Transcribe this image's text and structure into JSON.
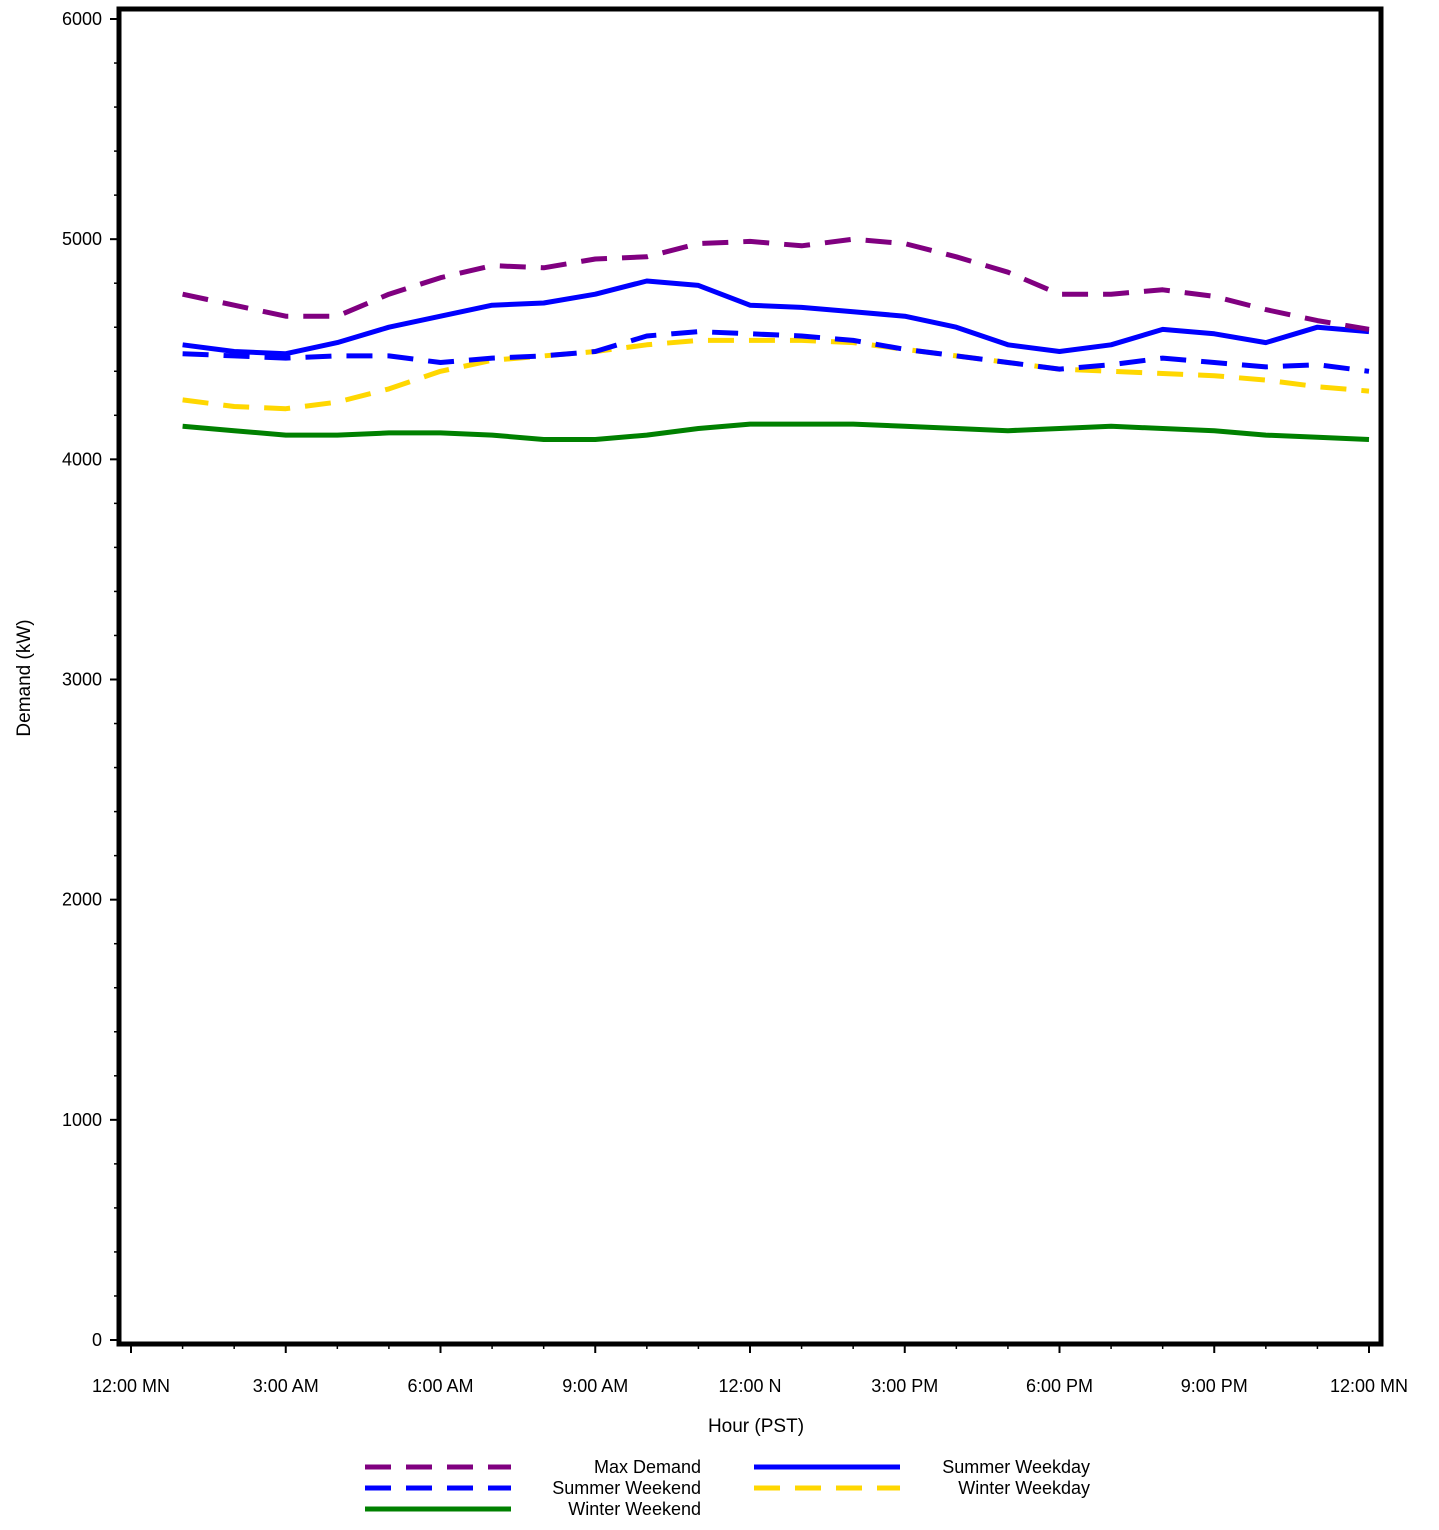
{
  "chart_data": {
    "type": "line",
    "title": "",
    "xlabel": "Hour (PST)",
    "ylabel": "Demand (kW)",
    "xlim": [
      0,
      24
    ],
    "ylim": [
      0,
      6000
    ],
    "x_ticks": [
      {
        "value": 0,
        "label": "12:00 MN"
      },
      {
        "value": 3,
        "label": "3:00 AM"
      },
      {
        "value": 6,
        "label": "6:00 AM"
      },
      {
        "value": 9,
        "label": "9:00 AM"
      },
      {
        "value": 12,
        "label": "12:00 N"
      },
      {
        "value": 15,
        "label": "3:00 PM"
      },
      {
        "value": 18,
        "label": "6:00 PM"
      },
      {
        "value": 21,
        "label": "9:00 PM"
      },
      {
        "value": 24,
        "label": "12:00 MN"
      }
    ],
    "y_ticks": [
      {
        "value": 0,
        "label": "0"
      },
      {
        "value": 1000,
        "label": "1000"
      },
      {
        "value": 2000,
        "label": "2000"
      },
      {
        "value": 3000,
        "label": "3000"
      },
      {
        "value": 4000,
        "label": "4000"
      },
      {
        "value": 5000,
        "label": "5000"
      },
      {
        "value": 6000,
        "label": "6000"
      }
    ],
    "grid": false,
    "legend_position": "bottom",
    "x": [
      1,
      2,
      3,
      4,
      5,
      6,
      7,
      8,
      9,
      10,
      11,
      12,
      13,
      14,
      15,
      16,
      17,
      18,
      19,
      20,
      21,
      22,
      23,
      24
    ],
    "series": [
      {
        "name": "Max Demand",
        "color": "#800080",
        "dash": "dashed",
        "values": [
          4750,
          4700,
          4650,
          4650,
          4750,
          4825,
          4880,
          4870,
          4910,
          4920,
          4980,
          4990,
          4970,
          5000,
          4980,
          4920,
          4850,
          4750,
          4750,
          4770,
          4740,
          4680,
          4630,
          4590
        ]
      },
      {
        "name": "Summer Weekday",
        "color": "#0000ff",
        "dash": "solid",
        "values": [
          4520,
          4490,
          4480,
          4530,
          4600,
          4650,
          4700,
          4710,
          4750,
          4810,
          4790,
          4700,
          4690,
          4670,
          4650,
          4600,
          4520,
          4490,
          4520,
          4590,
          4570,
          4530,
          4600,
          4580
        ]
      },
      {
        "name": "Summer Weekend",
        "color": "#0000ff",
        "dash": "dashed",
        "values": [
          4480,
          4470,
          4460,
          4470,
          4470,
          4440,
          4460,
          4470,
          4490,
          4560,
          4580,
          4570,
          4560,
          4540,
          4500,
          4470,
          4440,
          4410,
          4430,
          4460,
          4440,
          4420,
          4430,
          4400
        ]
      },
      {
        "name": "Winter Weekday",
        "color": "#ffd700",
        "dash": "dashed",
        "values": [
          4270,
          4240,
          4230,
          4260,
          4320,
          4400,
          4450,
          4470,
          4490,
          4520,
          4540,
          4540,
          4540,
          4530,
          4500,
          4470,
          4440,
          4410,
          4400,
          4390,
          4380,
          4360,
          4330,
          4310
        ]
      },
      {
        "name": "Winter Weekend",
        "color": "#008000",
        "dash": "solid",
        "values": [
          4150,
          4130,
          4110,
          4110,
          4120,
          4120,
          4110,
          4090,
          4090,
          4110,
          4140,
          4160,
          4160,
          4160,
          4150,
          4140,
          4130,
          4140,
          4150,
          4140,
          4130,
          4110,
          4100,
          4090
        ]
      }
    ]
  }
}
